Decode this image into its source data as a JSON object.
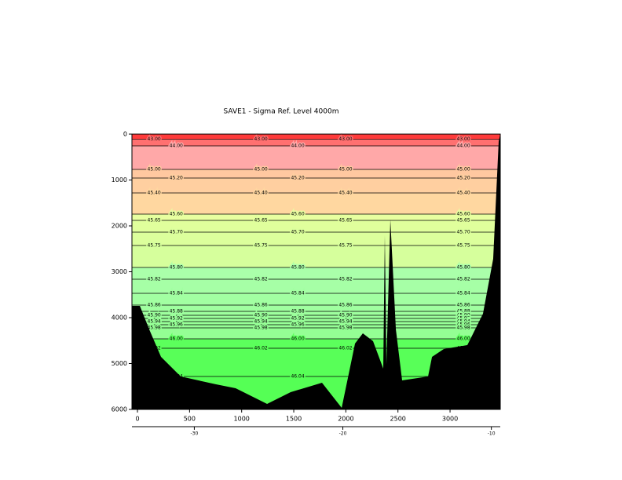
{
  "chart_data": {
    "type": "contour",
    "title": "SAVE1 - Sigma Ref. Level 4000m",
    "xlim": [
      -53,
      3482
    ],
    "xticks": [
      0,
      500,
      1000,
      1500,
      2000,
      2500,
      3000
    ],
    "ylim": [
      0,
      6000
    ],
    "yticks": [
      0,
      1000,
      2000,
      3000,
      4000,
      5000,
      6000
    ],
    "x2lim": [
      -34.2,
      -9.4
    ],
    "x2ticks": [
      -30,
      -20,
      -10
    ],
    "top_color": "#ff3b3b",
    "contours": [
      {
        "level": 43.0,
        "label": "43.00",
        "depth": 110,
        "color": "#ff7070"
      },
      {
        "level": 44.0,
        "label": "44.00",
        "depth": 256,
        "color": "#ffa8a8"
      },
      {
        "level": 45.0,
        "label": "45.00",
        "depth": 769,
        "color": "#ffc8a0"
      },
      {
        "level": 45.2,
        "label": "45.20",
        "depth": 957,
        "color": "#ffcfa0"
      },
      {
        "level": 45.4,
        "label": "45.40",
        "depth": 1282,
        "color": "#ffd7a0"
      },
      {
        "level": 45.6,
        "label": "45.60",
        "depth": 1744,
        "color": "#e8ffa0"
      },
      {
        "level": 45.65,
        "label": "45.65",
        "depth": 1880,
        "color": "#e0ff9c"
      },
      {
        "level": 45.7,
        "label": "45.70",
        "depth": 2137,
        "color": "#dcff9c"
      },
      {
        "level": 45.75,
        "label": "45.75",
        "depth": 2427,
        "color": "#d6ff9c"
      },
      {
        "level": 45.8,
        "label": "45.80",
        "depth": 2906,
        "color": "#aaffaa"
      },
      {
        "level": 45.82,
        "label": "45.82",
        "depth": 3162,
        "color": "#a6ffa6"
      },
      {
        "level": 45.84,
        "label": "45.84",
        "depth": 3470,
        "color": "#a2ffa2"
      },
      {
        "level": 45.86,
        "label": "45.86",
        "depth": 3726,
        "color": "#a0ffa0"
      },
      {
        "level": 45.88,
        "label": "45.88",
        "depth": 3863,
        "color": "#9eff9e"
      },
      {
        "level": 45.9,
        "label": "45.90",
        "depth": 3949,
        "color": "#9cff9c"
      },
      {
        "level": 45.92,
        "label": "45.92",
        "depth": 4017,
        "color": "#9aff9a"
      },
      {
        "level": 45.94,
        "label": "45.94",
        "depth": 4085,
        "color": "#98ff98"
      },
      {
        "level": 45.96,
        "label": "45.96",
        "depth": 4154,
        "color": "#96ff96"
      },
      {
        "level": 45.98,
        "label": "45.98",
        "depth": 4222,
        "color": "#94ff94"
      },
      {
        "level": 46.0,
        "label": "46.00",
        "depth": 4462,
        "color": "#5cff5c"
      },
      {
        "level": 46.02,
        "label": "46.02",
        "depth": 4667,
        "color": "#58ff58"
      },
      {
        "level": 46.04,
        "label": "46.04",
        "depth": 5282,
        "color": "#55ff55"
      }
    ],
    "bottom": {
      "x": [
        -53,
        23,
        113,
        226,
        415,
        754,
        942,
        1244,
        1470,
        1771,
        1960,
        2088,
        2163,
        2261,
        2359,
        2374,
        2389,
        2427,
        2480,
        2540,
        2789,
        2827,
        2940,
        3166,
        3316,
        3414,
        3467,
        3482
      ],
      "depth": [
        3744,
        3744,
        4256,
        4855,
        5282,
        5453,
        5538,
        5880,
        5624,
        5419,
        5966,
        4564,
        4342,
        4513,
        5111,
        2205,
        5026,
        1863,
        4256,
        5368,
        5282,
        4855,
        4684,
        4598,
        3915,
        2718,
        154,
        0
      ]
    }
  }
}
